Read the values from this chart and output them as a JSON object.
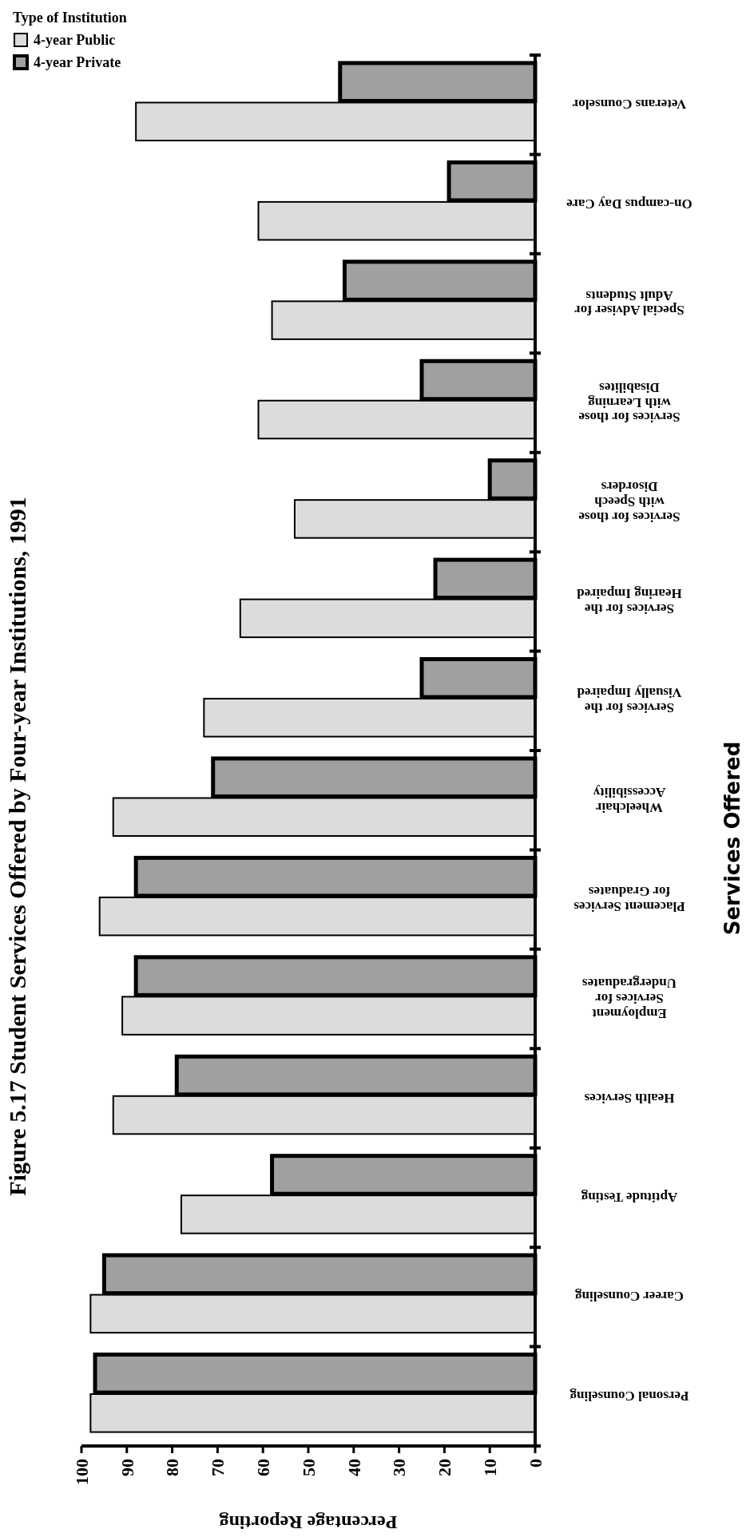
{
  "chart_data": {
    "type": "bar",
    "orientation": "horizontal",
    "title": "Figure 5.17 Student Services Offered by Four-year Institutions, 1991",
    "ylabel": "Services Offered",
    "xlabel": "Percentage Reporting",
    "legend_title": "Type of Institution",
    "categories": [
      "Veterans Counselor",
      "On-campus Day Care",
      "Special Adviser for\nAdult Students",
      "Services  for those\nwith Learning\nDisabilites",
      "Services for those\nwith Speech\nDisorders",
      "Services for the\nHearing Impaired",
      "Services for the\nVisually Impaired",
      "Wheelchair\nAccessibility",
      "Placement Services\nfor Graduates",
      "Employment\nServices for\nUndergraduates",
      "Health Services",
      "Aptitude Testing",
      "Career Counseling",
      "Personal Counseling"
    ],
    "series": [
      {
        "name": "4-year Public",
        "color": "#dcdcdc",
        "values": [
          88,
          61,
          58,
          61,
          53,
          65,
          73,
          93,
          96,
          91,
          93,
          78,
          98,
          98
        ]
      },
      {
        "name": "4-year Private",
        "color": "#a0a0a0",
        "values": [
          43,
          19,
          42,
          25,
          10,
          22,
          25,
          71,
          88,
          88,
          79,
          58,
          95,
          97
        ]
      }
    ],
    "xlim": [
      100,
      0
    ],
    "xticks": [
      100,
      90,
      80,
      70,
      60,
      50,
      40,
      30,
      20,
      10,
      0
    ],
    "legend": "top left"
  }
}
